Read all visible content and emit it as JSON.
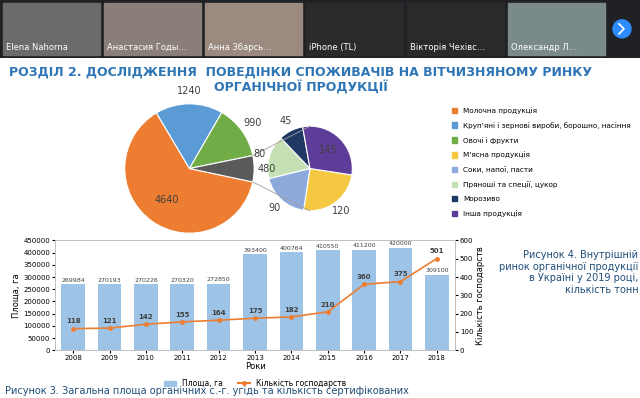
{
  "participants": [
    "Elena Nahorna",
    "Анастасия Годы…",
    "Анна Збарсь…",
    "iPhone (TL)",
    "Вікторія Чехівс…",
    "Олександр Л…"
  ],
  "slide_title": "РОЗДІЛ 2. ДОСЛІДЖЕННЯ  ПОВЕДІНКИ СПОЖИВАЧІВ НА ВІТЧИЗНЯНОМУ РИНКУ ОРГАНІЧНОЇ ПРОДУКЦІЇ",
  "chart_data": [
    {
      "type": "pie",
      "title": "Рисунок 4. Внутрішній ринок органічної продукції в Україні у 2019 році, кількість тонн",
      "categories": [
        "Молочна продукція",
        "Круп'яні і зернові вироби, борошно, насіння",
        "Овочі і фрукти",
        null
      ],
      "values": [
        4640,
        1240,
        990,
        480
      ],
      "colors": [
        "#ED7D31",
        "#5B9BD5",
        "#70AD47",
        "#5A5A5A"
      ],
      "data_labels": true,
      "legend": "right"
    },
    {
      "type": "pie",
      "categories": [
        "М'ясна продукція",
        "Соки, напої, пасти",
        "Пряноші та спеції, цукор",
        "Морозиво",
        "Інша продукція"
      ],
      "values": [
        120,
        90,
        80,
        45,
        145
      ],
      "colors": [
        "#F5C842",
        "#8EA9DB",
        "#C5E0B4",
        "#1F3864",
        "#5E3C99"
      ],
      "data_labels": true,
      "legend": "right"
    },
    {
      "type": "bar",
      "title": "Рисунок 3. Загальна площа органічних с.-г. угідь та кількість сертифікованих",
      "x_label": "Роки",
      "y_label": "Площа, га",
      "y2_label": "Кількість господарств",
      "categories": [
        "2008",
        "2009",
        "2010",
        "2011",
        "2012",
        "2013",
        "2014",
        "2015",
        "2016",
        "2017",
        "2018"
      ],
      "series": [
        {
          "name": "Площа, га",
          "type": "bar",
          "color": "#9DC3E6",
          "values": [
            269984,
            270193,
            270226,
            270320,
            272850,
            393400,
            400764,
            410550,
            411200,
            420000,
            309100
          ]
        },
        {
          "name": "Кількість господарств",
          "type": "line",
          "color": "#ED7D31",
          "marker": "circle",
          "axis": "y2",
          "values": [
            118,
            121,
            142,
            155,
            164,
            175,
            182,
            210,
            360,
            375,
            501
          ]
        }
      ],
      "ylim": [
        0,
        450000
      ],
      "yticks": [
        0,
        50000,
        100000,
        150000,
        200000,
        250000,
        300000,
        350000,
        400000,
        450000
      ],
      "y2lim": [
        0,
        600
      ],
      "y2ticks": [
        0,
        100,
        200,
        300,
        400,
        500,
        600
      ],
      "data_labels": true,
      "legend": "bottom",
      "grid": false
    }
  ]
}
